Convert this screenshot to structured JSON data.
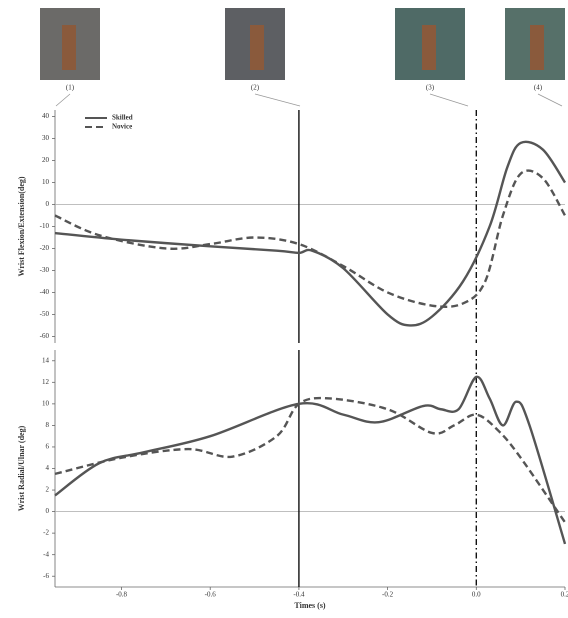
{
  "images": [
    {
      "label": "(1)"
    },
    {
      "label": "(2)"
    },
    {
      "label": "(3)"
    },
    {
      "label": "(4)"
    }
  ],
  "chart_data": [
    {
      "type": "line",
      "ylabel": "Wrist Flexion/Extension(deg)",
      "xlim": [
        -0.95,
        0.2
      ],
      "ylim": [
        -63,
        43
      ],
      "yticks": [
        40,
        30,
        20,
        10,
        0,
        -10,
        -20,
        -30,
        -40,
        -50,
        -60
      ],
      "hline": 0,
      "legend": "upper left",
      "vlines": [
        {
          "x": -0.4,
          "style": "solid"
        },
        {
          "x": 0,
          "style": "dashdot"
        }
      ],
      "series": [
        {
          "name": "Skilled",
          "color": "#555555",
          "style": "solid",
          "x": [
            -0.95,
            -0.8,
            -0.6,
            -0.45,
            -0.4,
            -0.37,
            -0.3,
            -0.2,
            -0.15,
            -0.1,
            -0.03,
            0.03,
            0.07,
            0.1,
            0.15,
            0.2
          ],
          "values": [
            -13,
            -16,
            -19,
            -21,
            -22,
            -21,
            -29,
            -50,
            -55,
            -51,
            -35,
            -10,
            17,
            28,
            25,
            10
          ]
        },
        {
          "name": "Novice",
          "color": "#555555",
          "style": "dashed",
          "x": [
            -0.95,
            -0.85,
            -0.7,
            -0.6,
            -0.5,
            -0.4,
            -0.3,
            -0.2,
            -0.1,
            -0.03,
            0.02,
            0.06,
            0.1,
            0.15,
            0.2
          ],
          "values": [
            -5,
            -14,
            -20,
            -18,
            -15,
            -18,
            -28,
            -40,
            -46,
            -45,
            -35,
            -5,
            14,
            12,
            -5
          ]
        }
      ]
    },
    {
      "type": "line",
      "ylabel": "Wrist Radial/Ulnar (deg)",
      "xlabel": "Times (s)",
      "xlim": [
        -0.95,
        0.2
      ],
      "ylim": [
        -7,
        15
      ],
      "xticks": [
        -0.8,
        -0.6,
        -0.4,
        -0.2,
        {
          "value": 0,
          "label": "0.0"
        },
        0.2
      ],
      "yticks": [
        14,
        12,
        10,
        8,
        6,
        4,
        2,
        0,
        -2,
        -4,
        -6
      ],
      "hline": 0,
      "vlines": [
        {
          "x": -0.4,
          "style": "solid"
        },
        {
          "x": 0,
          "style": "dashdot"
        }
      ],
      "series": [
        {
          "color": "#555555",
          "style": "solid",
          "x": [
            -0.95,
            -0.85,
            -0.75,
            -0.6,
            -0.4,
            -0.3,
            -0.22,
            -0.12,
            -0.08,
            -0.04,
            0,
            0.03,
            0.06,
            0.09,
            0.12,
            0.2
          ],
          "values": [
            1.5,
            4.5,
            5.5,
            7,
            10,
            9,
            8.3,
            9.8,
            9.5,
            9.5,
            12.5,
            10.5,
            8,
            10.2,
            8,
            -3
          ]
        },
        {
          "color": "#555555",
          "style": "dashed",
          "x": [
            -0.95,
            -0.8,
            -0.65,
            -0.55,
            -0.45,
            -0.4,
            -0.33,
            -0.2,
            -0.1,
            -0.05,
            0,
            0.05,
            0.1,
            0.2
          ],
          "values": [
            3.5,
            5,
            5.8,
            5.1,
            7,
            10,
            10.5,
            9.5,
            7.3,
            8,
            9,
            7.5,
            5,
            -1
          ]
        }
      ]
    }
  ]
}
